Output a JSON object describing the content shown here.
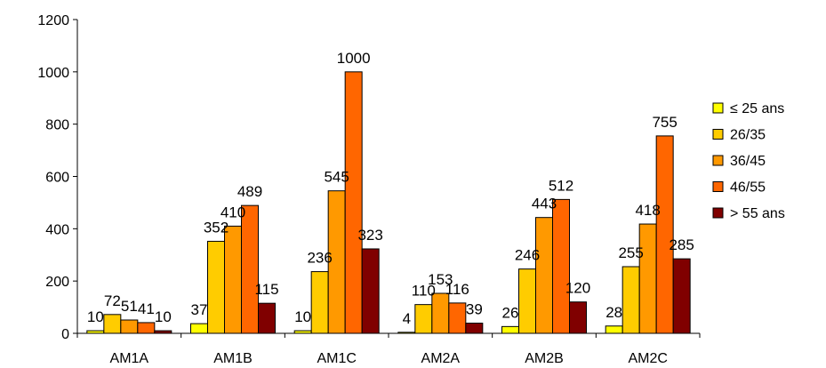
{
  "chart_data": {
    "type": "bar",
    "title": "",
    "xlabel": "",
    "ylabel": "",
    "ylim": [
      0,
      1200
    ],
    "yticks": [
      0,
      200,
      400,
      600,
      800,
      1000,
      1200
    ],
    "grid": false,
    "legend_position": "right",
    "categories": [
      "AM1A",
      "AM1B",
      "AM1C",
      "AM2A",
      "AM2B",
      "AM2C"
    ],
    "series": [
      {
        "name": "≤ 25 ans",
        "color": "#ffff00",
        "values": [
          10,
          37,
          10,
          4,
          26,
          28
        ]
      },
      {
        "name": "26/35",
        "color": "#ffcc00",
        "values": [
          72,
          352,
          236,
          110,
          246,
          255
        ]
      },
      {
        "name": "36/45",
        "color": "#ff9900",
        "values": [
          51,
          410,
          545,
          153,
          443,
          418
        ]
      },
      {
        "name": "46/55",
        "color": "#ff6600",
        "values": [
          41,
          489,
          1000,
          116,
          512,
          755
        ]
      },
      {
        "name": "> 55 ans",
        "color": "#800000",
        "values": [
          10,
          115,
          323,
          39,
          120,
          285
        ]
      }
    ]
  }
}
